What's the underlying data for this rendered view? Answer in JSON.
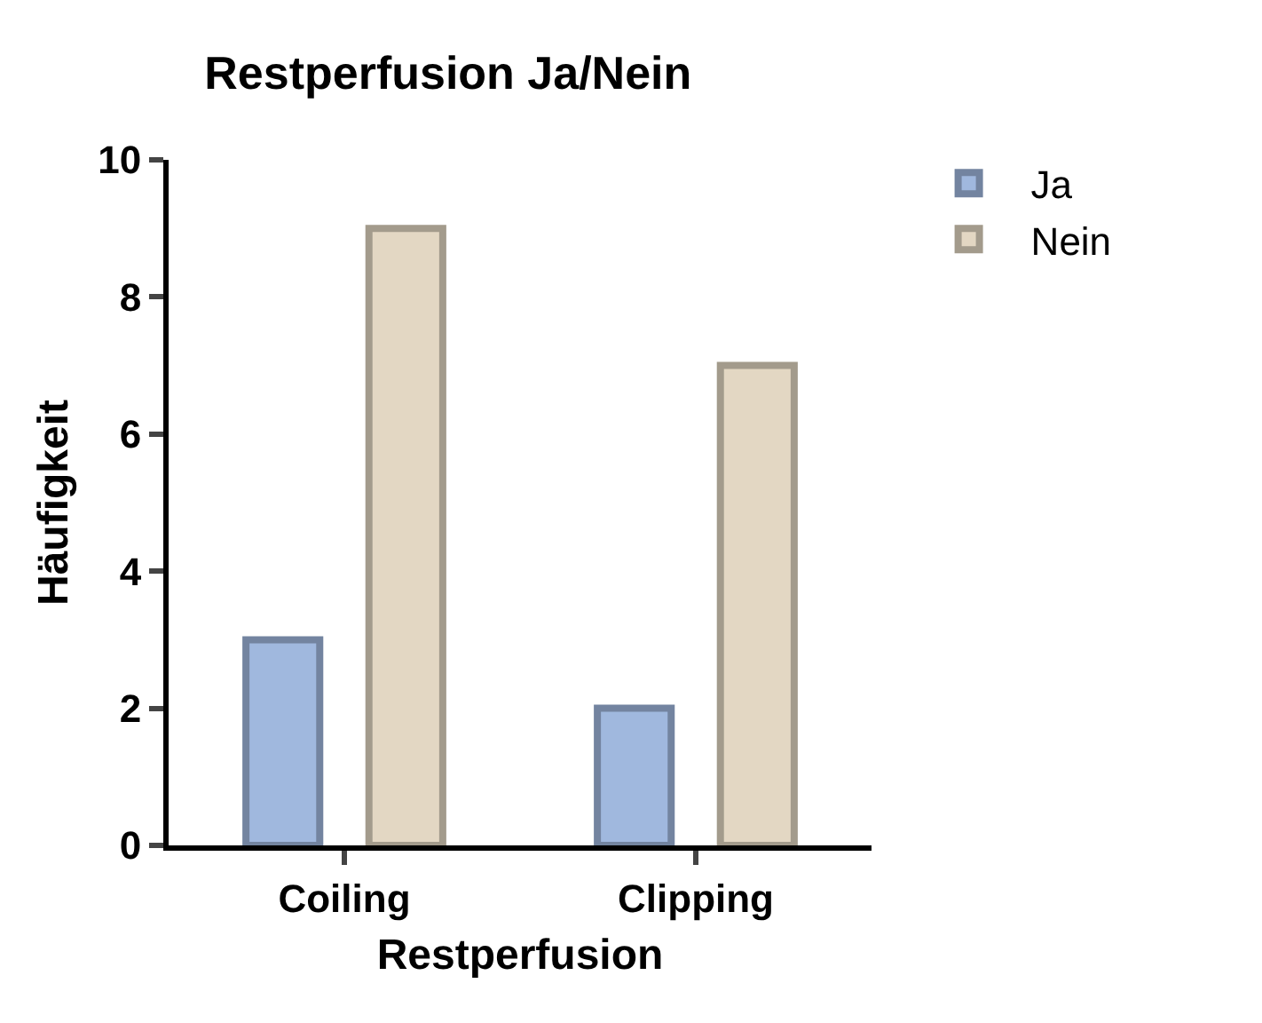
{
  "chart_data": {
    "type": "bar",
    "title": "Restperfusion Ja/Nein",
    "xlabel": "Restperfusion",
    "ylabel": "Häufigkeit",
    "categories": [
      "Coiling",
      "Clipping"
    ],
    "series": [
      {
        "name": "Ja",
        "color": "#a0b8de",
        "values": [
          3,
          2
        ]
      },
      {
        "name": "Nein",
        "color": "#e3d7c3",
        "values": [
          9,
          7
        ]
      }
    ],
    "ylim": [
      0,
      10
    ],
    "yticks": [
      0,
      2,
      4,
      6,
      8,
      10
    ],
    "grid": false,
    "legend": "top right"
  }
}
